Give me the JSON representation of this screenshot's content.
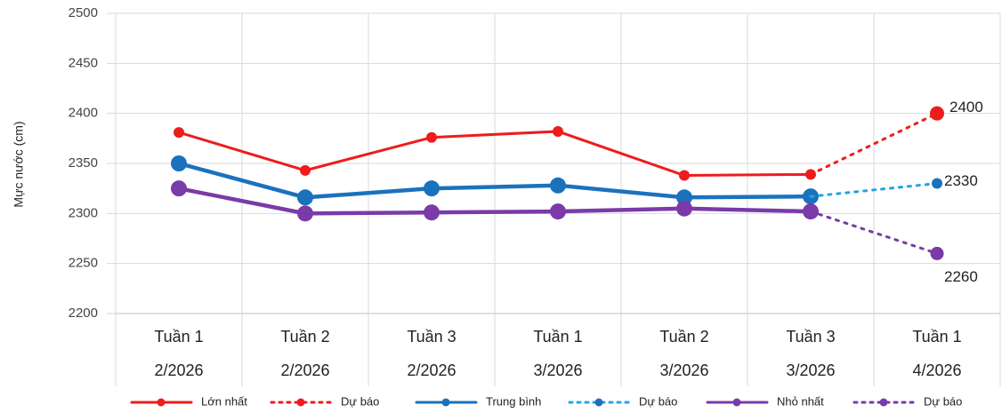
{
  "chart_data": {
    "type": "line",
    "y_label": "Mực nước (cm)",
    "categories": [
      [
        "Tuần 1",
        "2/2026"
      ],
      [
        "Tuần 2",
        "2/2026"
      ],
      [
        "Tuần 3",
        "2/2026"
      ],
      [
        "Tuần 1",
        "3/2026"
      ],
      [
        "Tuần 2",
        "3/2026"
      ],
      [
        "Tuần 3",
        "3/2026"
      ],
      [
        "Tuần 1",
        "4/2026"
      ]
    ],
    "ylim": [
      2200,
      2500
    ],
    "yticks": [
      2200,
      2250,
      2300,
      2350,
      2400,
      2450,
      2500
    ],
    "grid": true,
    "legend": "bottom",
    "series": [
      {
        "name": "Lớn nhất",
        "color": "#ee1c1c",
        "values": [
          2381,
          2343,
          2376,
          2382,
          2338,
          2339,
          null
        ]
      },
      {
        "name": "Dự báo",
        "color": "#ee1c1c",
        "dotted": true,
        "data_labels": true,
        "values": [
          null,
          null,
          null,
          null,
          null,
          2339,
          2400
        ]
      },
      {
        "name": "Trung bình",
        "color": "#1a72bd",
        "values": [
          2350,
          2316,
          2325,
          2328,
          2316,
          2317,
          null
        ]
      },
      {
        "name": "Dự báo",
        "color": "#21a3e3",
        "marker_color": "#1a72bd",
        "dotted": true,
        "data_labels": true,
        "values": [
          null,
          null,
          null,
          null,
          null,
          2317,
          2330
        ]
      },
      {
        "name": "Nhỏ nhất",
        "color": "#7a3aa8",
        "values": [
          2325,
          2300,
          2301,
          2302,
          2305,
          2302,
          null
        ]
      },
      {
        "name": "Dự báo",
        "color": "#7a3aa8",
        "dotted": true,
        "data_labels": true,
        "values": [
          null,
          null,
          null,
          null,
          null,
          2302,
          2260
        ]
      }
    ]
  }
}
